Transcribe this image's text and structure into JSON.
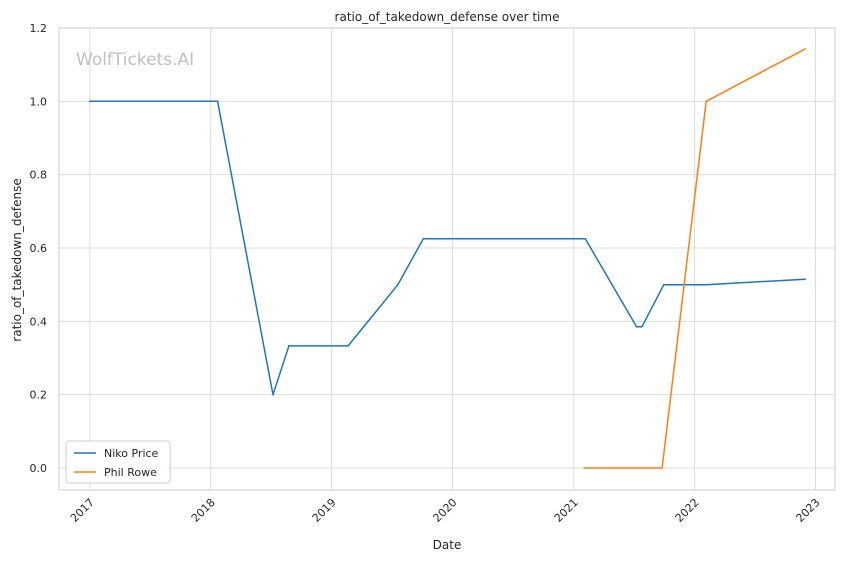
{
  "chart_data": {
    "type": "line",
    "title": "ratio_of_takedown_defense over time",
    "xlabel": "Date",
    "ylabel": "ratio_of_takedown_defense",
    "watermark": "WolfTickets.AI",
    "x_ticks": [
      "2017",
      "2018",
      "2019",
      "2020",
      "2021",
      "2022",
      "2023"
    ],
    "y_ticks": [
      "0.0",
      "0.2",
      "0.4",
      "0.6",
      "0.8",
      "1.0",
      "1.2"
    ],
    "xlim": [
      "2016-09-30",
      "2023-03-01"
    ],
    "ylim": [
      -0.06,
      1.2
    ],
    "grid": true,
    "legend_position": "lower-left",
    "series": [
      {
        "name": "Niko Price",
        "color": "#1f77b4",
        "points": [
          [
            "2017-01-01",
            1.0
          ],
          [
            "2018-01-22",
            1.0
          ],
          [
            "2018-07-08",
            0.2
          ],
          [
            "2018-08-25",
            0.333
          ],
          [
            "2019-02-20",
            0.333
          ],
          [
            "2019-07-20",
            0.5
          ],
          [
            "2019-10-05",
            0.625
          ],
          [
            "2021-02-05",
            0.625
          ],
          [
            "2021-07-10",
            0.385
          ],
          [
            "2021-07-26",
            0.385
          ],
          [
            "2021-09-30",
            0.5
          ],
          [
            "2022-02-05",
            0.5
          ],
          [
            "2022-12-01",
            0.515
          ]
        ]
      },
      {
        "name": "Phil Rowe",
        "color": "#ff7f0e",
        "points": [
          [
            "2021-02-01",
            0.0
          ],
          [
            "2021-09-25",
            0.0
          ],
          [
            "2022-02-05",
            1.0
          ],
          [
            "2022-12-01",
            1.143
          ]
        ]
      }
    ]
  }
}
